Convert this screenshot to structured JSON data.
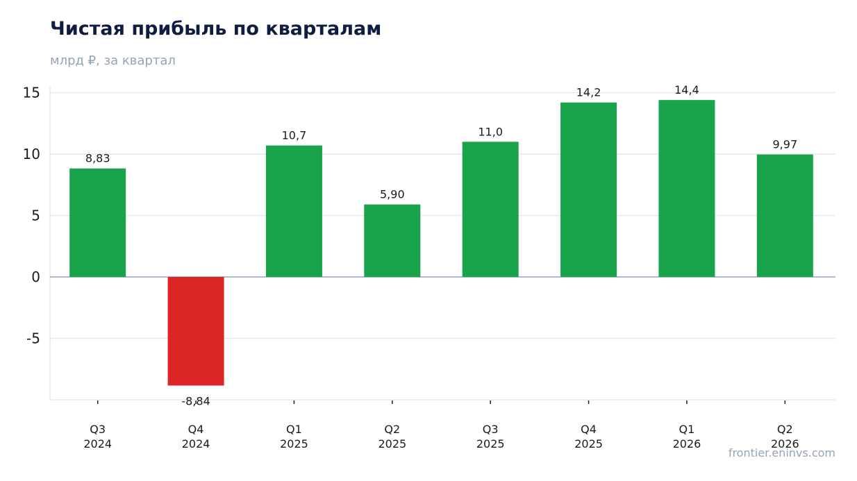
{
  "header": {
    "title": "Чистая прибыль по кварталам",
    "subtitle": "млрд ₽, за квартал"
  },
  "footer": {
    "watermark": "frontier.eninvs.com"
  },
  "chart_data": {
    "type": "bar",
    "categories": [
      [
        "Q3",
        "2024"
      ],
      [
        "Q4",
        "2024"
      ],
      [
        "Q1",
        "2025"
      ],
      [
        "Q2",
        "2025"
      ],
      [
        "Q3",
        "2025"
      ],
      [
        "Q4",
        "2025"
      ],
      [
        "Q1",
        "2026"
      ],
      [
        "Q2",
        "2026"
      ]
    ],
    "values": [
      8.83,
      -8.84,
      10.7,
      5.9,
      11.0,
      14.2,
      14.4,
      9.97
    ],
    "data_labels": [
      "8,83",
      "-8,84",
      "10,7",
      "5,90",
      "11,0",
      "14,2",
      "14,4",
      "9,97"
    ],
    "yticks": [
      15,
      10,
      5,
      0,
      -5
    ],
    "ytick_labels": [
      "15",
      "10",
      "5",
      "0",
      "-5"
    ],
    "ylim": [
      -10,
      15.5
    ],
    "grid": true,
    "colors": {
      "positive": "#19a34a",
      "negative": "#dc2626",
      "grid": "#e5e7eb",
      "zero_line": "#94a3b8",
      "axis": "#e5e7eb"
    }
  }
}
